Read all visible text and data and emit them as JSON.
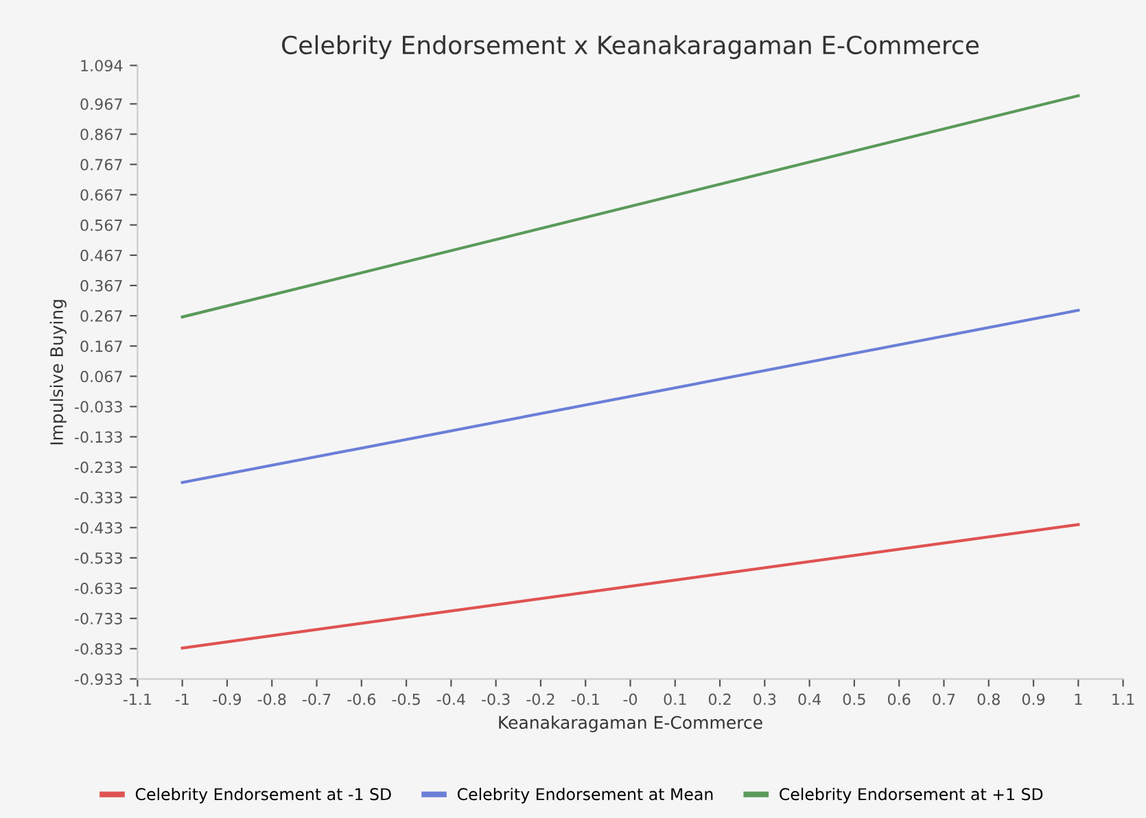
{
  "chart_data": {
    "type": "line",
    "title": "Celebrity Endorsement x Keanakaragaman E-Commerce",
    "xlabel": "Keanakaragaman E-Commerce",
    "ylabel": "Impulsive Buying",
    "x": [
      -1,
      1
    ],
    "series": [
      {
        "name": "Celebrity Endorsement at -1 SD",
        "color": "#e05252",
        "values": [
          -0.831,
          -0.423
        ]
      },
      {
        "name": "Celebrity Endorsement at Mean",
        "color": "#6b7fd7",
        "values": [
          -0.284,
          0.285
        ]
      },
      {
        "name": "Celebrity Endorsement at +1 SD",
        "color": "#5a9a5a",
        "values": [
          0.263,
          0.994
        ]
      }
    ],
    "xlim": [
      -1.1,
      1.1
    ],
    "xticks": [
      -1.1,
      -1,
      -0.9,
      -0.8,
      -0.7,
      -0.6,
      -0.5,
      -0.4,
      -0.3,
      -0.2,
      -0.1,
      {
        "value": 0,
        "label": "-0"
      },
      0.1,
      0.2,
      0.3,
      0.4,
      0.5,
      0.6,
      0.7,
      0.8,
      0.9,
      1,
      1.1
    ],
    "ylim": [
      -0.933,
      1.094
    ],
    "yticks": [
      -0.933,
      -0.833,
      -0.733,
      -0.633,
      -0.533,
      -0.433,
      -0.333,
      -0.233,
      -0.133,
      -0.033,
      0.067,
      0.167,
      0.267,
      0.367,
      0.467,
      0.567,
      0.667,
      0.767,
      0.867,
      0.967,
      1.094
    ],
    "grid": false,
    "legend": "bottom",
    "marker": "none",
    "line_style": "solid"
  }
}
